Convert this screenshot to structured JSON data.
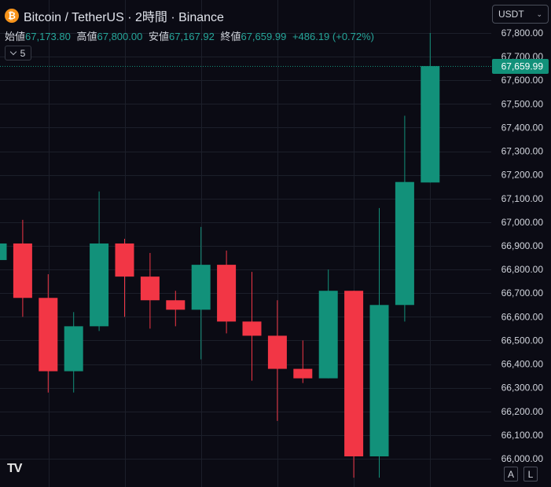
{
  "header": {
    "coin_icon_glyph": "₿",
    "title": "Bitcoin / TetherUS · 2時間 · Binance"
  },
  "ohlc": {
    "open_label": "始値",
    "open_value": "67,173.80",
    "high_label": "高値",
    "high_value": "67,800.00",
    "low_label": "安値",
    "low_value": "67,167.92",
    "close_label": "終値",
    "close_value": "67,659.99",
    "change": "+486.19 (+0.72%)"
  },
  "indicator_toggle": {
    "count": "5"
  },
  "currency_select": {
    "value": "USDT",
    "arrow": "⌄"
  },
  "scale_buttons": {
    "auto": "A",
    "log": "L"
  },
  "logo": {
    "text": "TV"
  },
  "colors": {
    "up": "#12917a",
    "down": "#f23645",
    "background": "#0b0b14",
    "grid": "#1c1f2a",
    "text": "#d1d4dc"
  },
  "chart_data": {
    "type": "candlestick",
    "ylim": [
      65950,
      67850
    ],
    "y_ticks": [
      "66,000.00",
      "66,100.00",
      "66,200.00",
      "66,300.00",
      "66,400.00",
      "66,500.00",
      "66,600.00",
      "66,700.00",
      "66,800.00",
      "66,900.00",
      "67,000.00",
      "67,100.00",
      "67,200.00",
      "67,300.00",
      "67,400.00",
      "67,500.00",
      "67,600.00",
      "67,700.00",
      "67,800.00"
    ],
    "y_tick_values": [
      66000,
      66100,
      66200,
      66300,
      66400,
      66500,
      66600,
      66700,
      66800,
      66900,
      67000,
      67100,
      67200,
      67300,
      67400,
      67500,
      67600,
      67700,
      67800
    ],
    "last_price_label": "67,659.99",
    "last_price": 67659.99,
    "candles": [
      {
        "o": 66840,
        "h": 66910,
        "l": 66840,
        "c": 66910
      },
      {
        "o": 66910,
        "h": 67010,
        "l": 66600,
        "c": 66680
      },
      {
        "o": 66680,
        "h": 66780,
        "l": 66280,
        "c": 66370
      },
      {
        "o": 66370,
        "h": 66620,
        "l": 66280,
        "c": 66560
      },
      {
        "o": 66560,
        "h": 67130,
        "l": 66540,
        "c": 66910
      },
      {
        "o": 66910,
        "h": 66930,
        "l": 66600,
        "c": 66770
      },
      {
        "o": 66770,
        "h": 66870,
        "l": 66550,
        "c": 66670
      },
      {
        "o": 66670,
        "h": 66710,
        "l": 66560,
        "c": 66630
      },
      {
        "o": 66630,
        "h": 66980,
        "l": 66420,
        "c": 66820
      },
      {
        "o": 66820,
        "h": 66880,
        "l": 66530,
        "c": 66580
      },
      {
        "o": 66580,
        "h": 66790,
        "l": 66330,
        "c": 66520
      },
      {
        "o": 66520,
        "h": 66670,
        "l": 66160,
        "c": 66380
      },
      {
        "o": 66380,
        "h": 66500,
        "l": 66320,
        "c": 66340
      },
      {
        "o": 66340,
        "h": 66800,
        "l": 66340,
        "c": 66710
      },
      {
        "o": 66710,
        "h": 66710,
        "l": 65920,
        "c": 66010
      },
      {
        "o": 66010,
        "h": 67060,
        "l": 65920,
        "c": 66650
      },
      {
        "o": 66650,
        "h": 67450,
        "l": 66580,
        "c": 67170
      },
      {
        "o": 67167.92,
        "h": 67800,
        "l": 67167.92,
        "c": 67659.99
      }
    ]
  }
}
